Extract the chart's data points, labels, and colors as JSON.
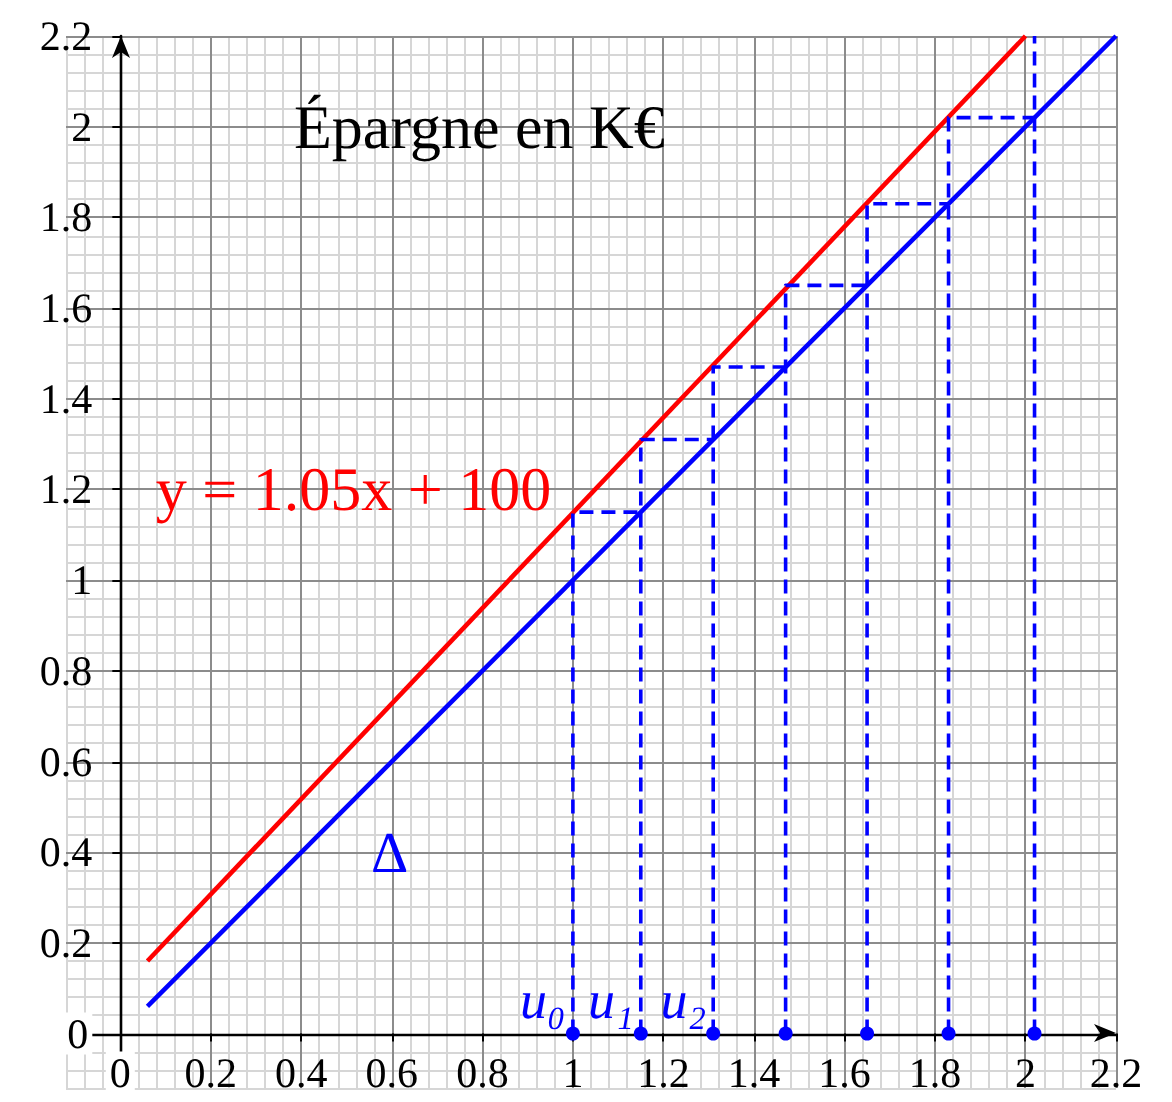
{
  "chart_data": {
    "type": "line",
    "title": "Épargne en K€",
    "xlim": [
      -0.12,
      2.2
    ],
    "ylim": [
      -0.12,
      2.2
    ],
    "xticks": [
      0,
      0.2,
      0.4,
      0.6,
      0.8,
      1,
      1.2,
      1.4,
      1.6,
      1.8,
      2,
      2.2
    ],
    "yticks": [
      0,
      0.2,
      0.4,
      0.6,
      0.8,
      1,
      1.2,
      1.4,
      1.6,
      1.8,
      2,
      2.2
    ],
    "grid": true,
    "legend": false,
    "series": [
      {
        "name": "y = 1.05x + 100",
        "color": "#ff0000",
        "marker": "none",
        "x": [
          0.06,
          2.0
        ],
        "values": [
          0.16,
          2.2
        ]
      },
      {
        "name": "Δ",
        "color": "#0000ff",
        "marker": "none",
        "x": [
          0.06,
          2.2
        ],
        "values": [
          0.06,
          2.2
        ]
      },
      {
        "color": "#0000ff",
        "marker": "none",
        "line_style": "dashed",
        "x": [
          1,
          1,
          1.15,
          null,
          1.15,
          1.15,
          1.31,
          null,
          1.31,
          1.31,
          1.47,
          null,
          1.47,
          1.47,
          1.65,
          null,
          1.65,
          1.65,
          1.83,
          null,
          1.83,
          1.83,
          2.02,
          null,
          2.02,
          2.02
        ],
        "values": [
          0,
          1.15,
          1.15,
          null,
          0,
          1.31,
          1.31,
          null,
          0,
          1.47,
          1.47,
          null,
          0,
          1.65,
          1.65,
          null,
          0,
          1.83,
          1.83,
          null,
          0,
          2.02,
          2.02,
          null,
          0,
          2.2
        ]
      },
      {
        "type": "scatter",
        "color": "#0000ff",
        "marker": "circle",
        "x": [
          1,
          1.15,
          1.31,
          1.47,
          1.65,
          1.83,
          2.02
        ],
        "values": [
          0,
          0,
          0,
          0,
          0,
          0,
          0
        ],
        "value_labels": [
          "u₀",
          "u₁",
          "u₂",
          null,
          null,
          null,
          null
        ]
      }
    ]
  }
}
